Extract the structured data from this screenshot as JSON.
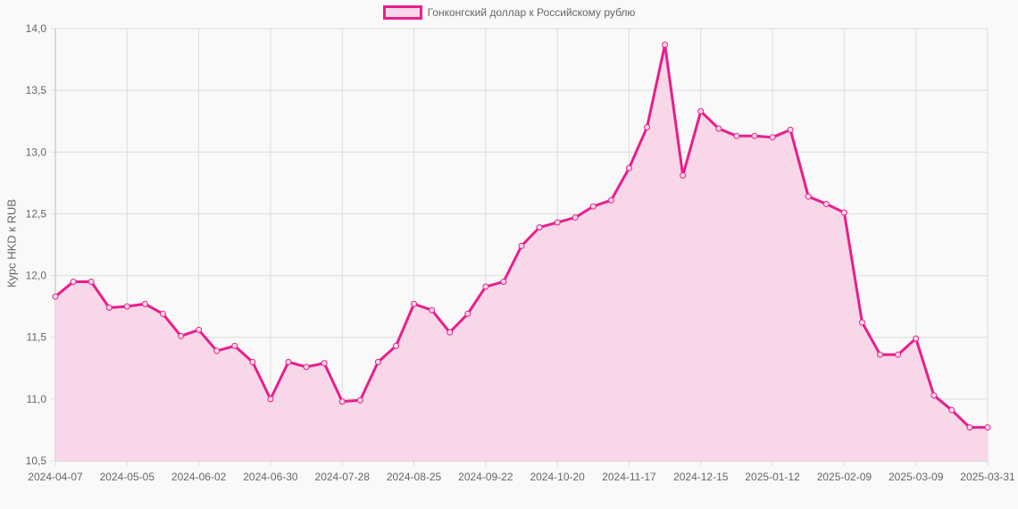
{
  "legend": {
    "label": "Гонконгский доллар к Российскому рублю",
    "color": "#e91e8c",
    "fill": "#f8d7e8"
  },
  "chart_data": {
    "type": "line",
    "title": "",
    "xlabel": "",
    "ylabel": "Курс HKD к RUB",
    "ylim": [
      10.5,
      14.0
    ],
    "yticks": [
      "10,5",
      "11,0",
      "11,5",
      "12,0",
      "12,5",
      "13,0",
      "13,5",
      "14,0"
    ],
    "xtick_labels": [
      "2024-04-07",
      "2024-05-05",
      "2024-06-02",
      "2024-06-30",
      "2024-07-28",
      "2024-08-25",
      "2024-09-22",
      "2024-10-20",
      "2024-11-17",
      "2024-12-15",
      "2025-01-12",
      "2025-02-09",
      "2025-03-09",
      "2025-03-31"
    ],
    "grid": true,
    "legend_position": "top",
    "series": [
      {
        "name": "Гонконгский доллар к Российскому рублю",
        "values": [
          11.83,
          11.95,
          11.95,
          11.74,
          11.75,
          11.77,
          11.69,
          11.51,
          11.56,
          11.39,
          11.43,
          11.3,
          11.0,
          11.3,
          11.26,
          11.29,
          10.98,
          10.99,
          11.3,
          11.43,
          11.77,
          11.72,
          11.54,
          11.69,
          11.91,
          11.95,
          12.24,
          12.39,
          12.43,
          12.47,
          12.56,
          12.61,
          12.87,
          13.2,
          13.87,
          12.81,
          13.33,
          13.19,
          13.13,
          13.13,
          13.12,
          13.18,
          12.64,
          12.58,
          12.51,
          11.62,
          11.36,
          11.36,
          11.49,
          11.03,
          10.91,
          10.77,
          10.77
        ]
      }
    ]
  }
}
